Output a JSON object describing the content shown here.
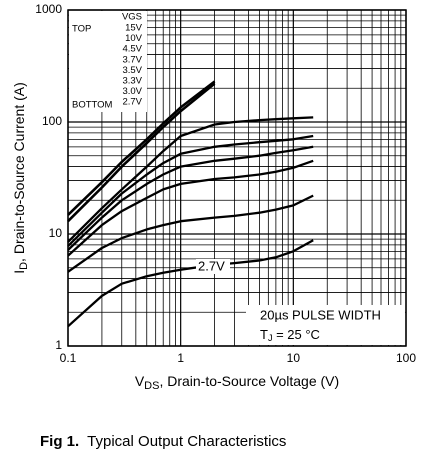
{
  "chart_data": {
    "type": "line",
    "xlabel": {
      "symbol": "V",
      "subscript": "DS",
      "text": ", Drain-to-Source Voltage (V)"
    },
    "ylabel": {
      "symbol": "I",
      "subscript": "D",
      "text": ",  Drain-to-Source Current (A)"
    },
    "caption": {
      "label": "Fig 1.",
      "text": "Typical Output Characteristics"
    },
    "legend_title": "VGS",
    "legend_top": "TOP",
    "legend_bottom": "BOTTOM",
    "legend_corner": "top-left",
    "annotations": {
      "curve_label": "2.7V",
      "pulse": "20µs PULSE WIDTH",
      "temp_symbol": "T",
      "temp_subscript": "J",
      "temp_text": " = 25 °C"
    },
    "log_x": true,
    "log_y": true,
    "grid": true,
    "minor_grid": true,
    "xlim": [
      0.1,
      100
    ],
    "ylim": [
      1,
      1000
    ],
    "xticks": [
      0.1,
      1,
      10,
      100
    ],
    "yticks": [
      1,
      10,
      100,
      1000
    ],
    "x": [
      0.1,
      0.2,
      0.3,
      0.5,
      0.7,
      1,
      2,
      3,
      5,
      7,
      10,
      15
    ],
    "series": [
      {
        "name": "15V",
        "color": "#000000",
        "values": [
          14.8,
          29,
          44,
          70,
          97,
          135,
          230,
          null,
          null,
          null,
          null,
          null
        ]
      },
      {
        "name": "10V",
        "color": "#000000",
        "values": [
          13,
          26,
          40,
          65,
          90,
          125,
          220,
          null,
          null,
          null,
          null,
          null
        ]
      },
      {
        "name": "4.5V",
        "color": "#000000",
        "values": [
          8.5,
          17,
          25,
          40,
          55,
          75,
          95,
          100,
          104,
          106,
          108,
          110
        ]
      },
      {
        "name": "3.7V",
        "color": "#000000",
        "values": [
          7.8,
          15.5,
          23,
          34,
          43,
          52,
          60,
          63,
          66,
          68,
          70,
          75
        ]
      },
      {
        "name": "3.5V",
        "color": "#000000",
        "values": [
          7.2,
          14,
          20,
          28,
          34,
          40,
          45,
          47,
          50,
          53,
          56,
          60
        ]
      },
      {
        "name": "3.3V",
        "color": "#000000",
        "values": [
          6.4,
          12,
          16,
          21,
          25,
          28,
          31,
          32,
          34,
          36,
          39,
          45
        ]
      },
      {
        "name": "3.0V",
        "color": "#000000",
        "values": [
          4.6,
          7.5,
          9.2,
          11,
          12,
          13,
          14,
          14.5,
          15.5,
          16.5,
          18,
          22
        ]
      },
      {
        "name": "2.7V",
        "color": "#000000",
        "values": [
          1.5,
          2.8,
          3.6,
          4.2,
          4.5,
          4.8,
          5.3,
          5.5,
          5.8,
          6.2,
          7,
          8.8
        ]
      }
    ]
  }
}
